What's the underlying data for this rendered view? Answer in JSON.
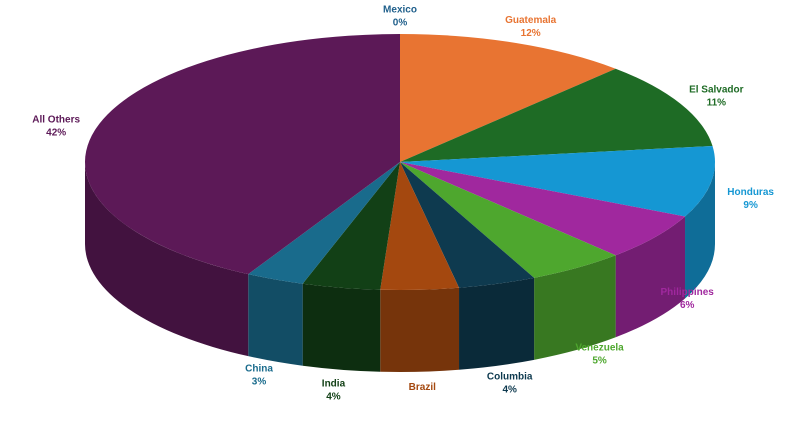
{
  "chart_data": {
    "type": "pie",
    "categories": [
      "Mexico",
      "Guatemala",
      "El Salvador",
      "Honduras",
      "Philippines",
      "Venezuela",
      "Columbia",
      "Brazil",
      "India",
      "China",
      "All Others"
    ],
    "values": [
      0,
      12,
      11,
      9,
      6,
      5,
      4,
      4,
      4,
      3,
      42
    ],
    "value_labels": [
      "0%",
      "12%",
      "11%",
      "9%",
      "6%",
      "5%",
      "4%",
      null,
      "4%",
      "3%",
      "42%"
    ],
    "colors": [
      "#1f5f8b",
      "#e87432",
      "#1e6b25",
      "#1597d3",
      "#a0289e",
      "#4ea72e",
      "#0e3a4f",
      "#a4480f",
      "#124016",
      "#196b8c",
      "#5c1957"
    ]
  }
}
